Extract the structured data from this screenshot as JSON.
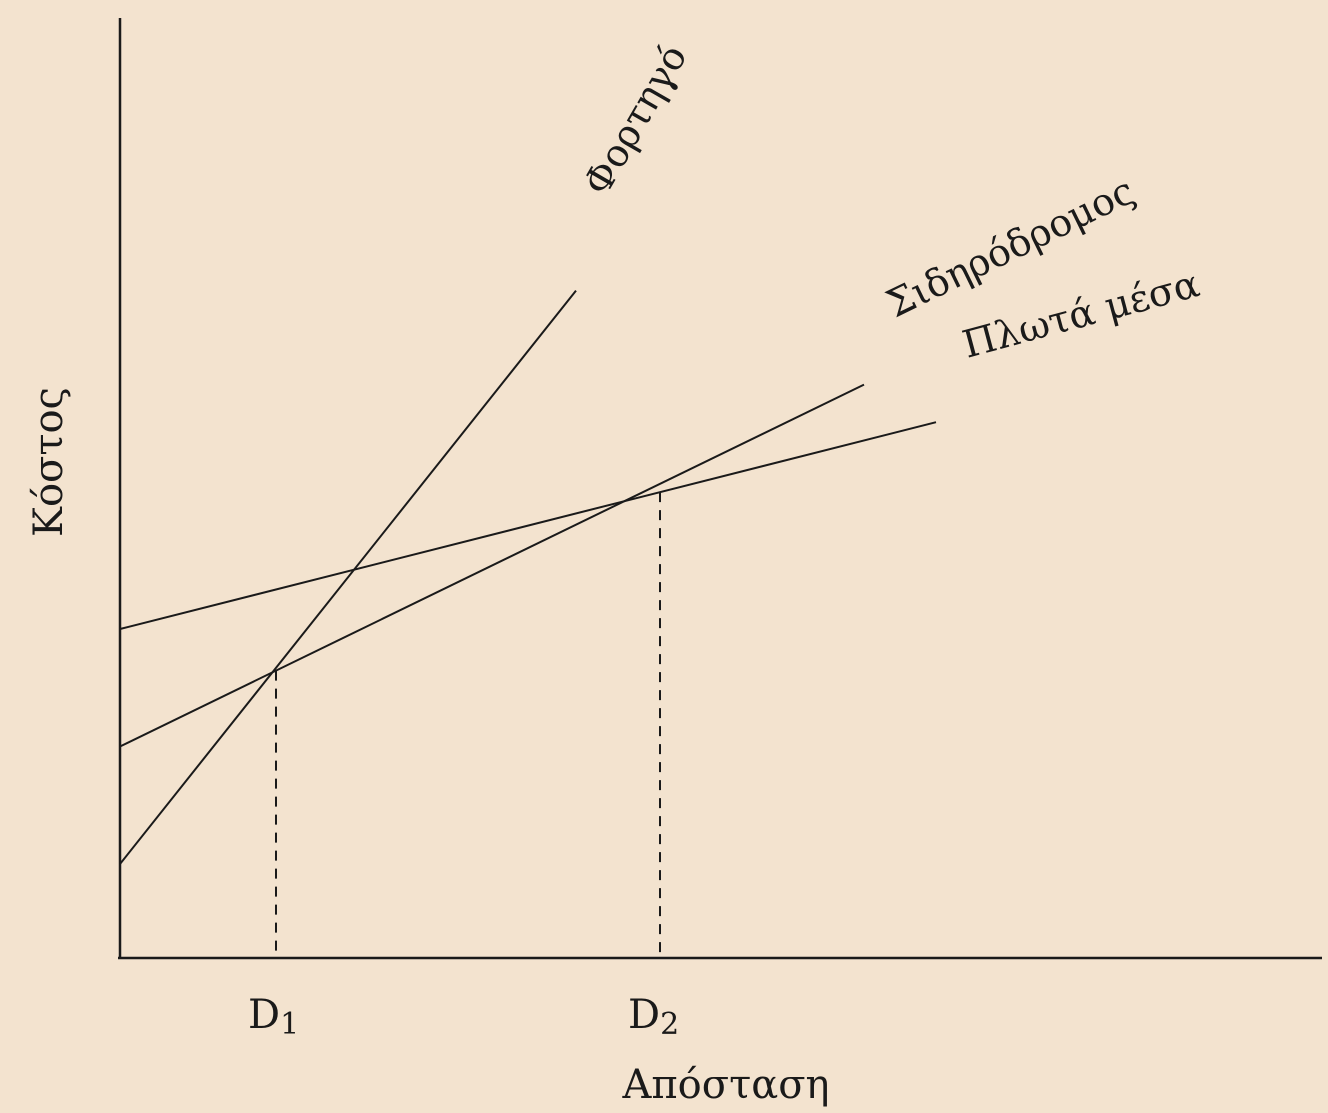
{
  "chart_data": {
    "type": "line",
    "xlabel": "Απόσταση",
    "ylabel": "Κόστος",
    "xlim": [
      0,
      10
    ],
    "ylim": [
      0,
      10
    ],
    "grid": false,
    "legend": "inline labels at line ends",
    "ticks": [
      {
        "base": "D",
        "sub": "1",
        "x": 1.3
      },
      {
        "base": "D",
        "sub": "2",
        "x": 4.5
      }
    ],
    "series": [
      {
        "name": "Φορτηγό",
        "x": [
          0,
          3.8
        ],
        "y": [
          1.0,
          7.1
        ]
      },
      {
        "name": "Σιδηρόδρομος",
        "x": [
          0,
          6.2
        ],
        "y": [
          2.25,
          6.1
        ]
      },
      {
        "name": "Πλωτά μέσα",
        "x": [
          0,
          6.8
        ],
        "y": [
          3.5,
          5.7
        ]
      }
    ],
    "colors": {
      "background": "#f3e3cf",
      "ink": "#1a1a1a"
    }
  }
}
